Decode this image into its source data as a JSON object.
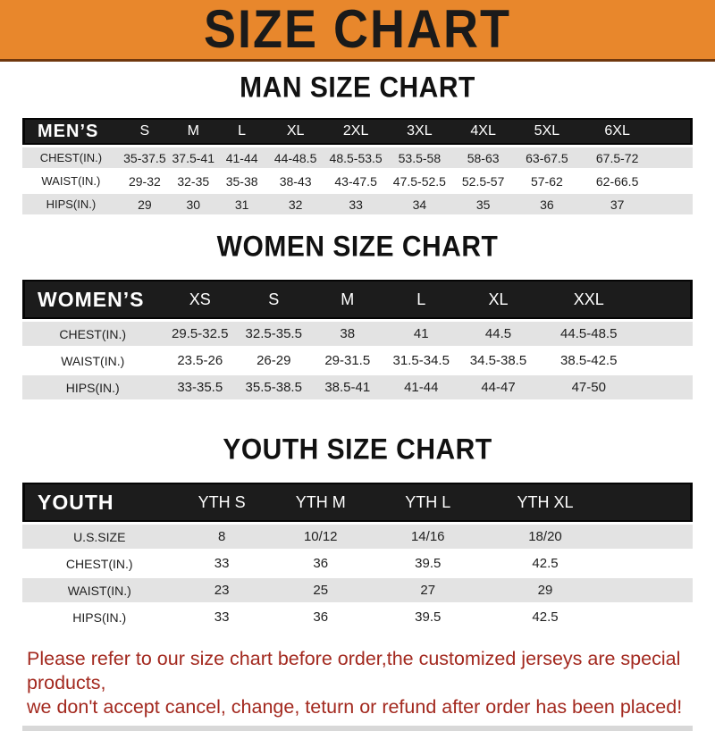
{
  "banner": {
    "title": "SIZE CHART"
  },
  "sections": {
    "men": {
      "title": "MAN SIZE CHART",
      "table": {
        "header": [
          "MEN’S",
          "S",
          "M",
          "L",
          "XL",
          "2XL",
          "3XL",
          "4XL",
          "5XL",
          "6XL"
        ],
        "rows": [
          {
            "label": "CHEST(IN.)",
            "values": [
              "35-37.5",
              "37.5-41",
              "41-44",
              "44-48.5",
              "48.5-53.5",
              "53.5-58",
              "58-63",
              "63-67.5",
              "67.5-72"
            ]
          },
          {
            "label": "WAIST(IN.)",
            "values": [
              "29-32",
              "32-35",
              "35-38",
              "38-43",
              "43-47.5",
              "47.5-52.5",
              "52.5-57",
              "57-62",
              "62-66.5"
            ]
          },
          {
            "label": "HIPS(IN.)",
            "values": [
              "29",
              "30",
              "31",
              "32",
              "33",
              "34",
              "35",
              "36",
              "37"
            ]
          }
        ]
      }
    },
    "women": {
      "title": "WOMEN SIZE CHART",
      "table": {
        "header": [
          "WOMEN’S",
          "XS",
          "S",
          "M",
          "L",
          "XL",
          "XXL"
        ],
        "rows": [
          {
            "label": "CHEST(IN.)",
            "values": [
              "29.5-32.5",
              "32.5-35.5",
              "38",
              "41",
              "44.5",
              "44.5-48.5"
            ]
          },
          {
            "label": "WAIST(IN.)",
            "values": [
              "23.5-26",
              "26-29",
              "29-31.5",
              "31.5-34.5",
              "34.5-38.5",
              "38.5-42.5"
            ]
          },
          {
            "label": "HIPS(IN.)",
            "values": [
              "33-35.5",
              "35.5-38.5",
              "38.5-41",
              "41-44",
              "44-47",
              "47-50"
            ]
          }
        ]
      }
    },
    "youth": {
      "title": "YOUTH SIZE CHART",
      "table": {
        "header": [
          "YOUTH",
          "YTH S",
          "YTH M",
          "YTH L",
          "YTH XL"
        ],
        "rows": [
          {
            "label": "U.S.SIZE",
            "values": [
              "8",
              "10/12",
              "14/16",
              "18/20"
            ]
          },
          {
            "label": "CHEST(IN.)",
            "values": [
              "33",
              "36",
              "39.5",
              "42.5"
            ]
          },
          {
            "label": "WAIST(IN.)",
            "values": [
              "23",
              "25",
              "27",
              "29"
            ]
          },
          {
            "label": "HIPS(IN.)",
            "values": [
              "33",
              "36",
              "39.5",
              "42.5"
            ]
          }
        ]
      }
    }
  },
  "notice": {
    "line1": "Please refer to our size chart before order,the customized jerseys are special products,",
    "line2": "we don't accept cancel, change, teturn or refund after order has been placed!"
  },
  "colors": {
    "banner_bg": "#E8872C",
    "banner_border": "#70380E",
    "banner_text": "#1A1A1A",
    "header_bar_bg": "#1C1C1C",
    "header_bar_text": "#FFFFFF",
    "row_alt_bg": "#E3E3E3",
    "body_text": "#1F1F1F",
    "notice_text": "#A3291F"
  }
}
